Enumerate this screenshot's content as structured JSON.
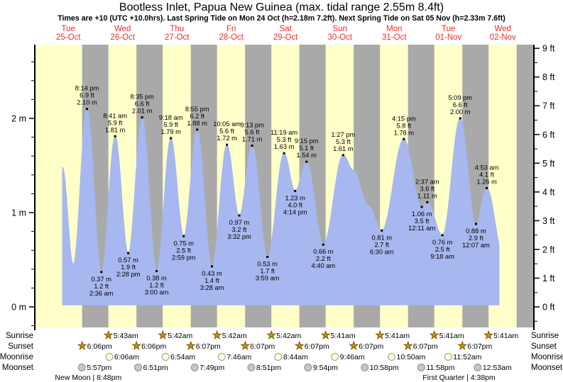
{
  "title": "Bootless Inlet, Papua New Guinea (max. tidal range 2.55m 8.4ft)",
  "subtitle": "Times are +10 (UTC +10.0hrs). Last Spring Tide on Mon 24 Oct (h=2.18m 7.2ft). Next Spring Tide on Sat 05 Nov (h=2.33m 7.6ft)",
  "days": [
    {
      "name": "Tue",
      "date": "25-Oct"
    },
    {
      "name": "Wed",
      "date": "26-Oct"
    },
    {
      "name": "Thu",
      "date": "27-Oct"
    },
    {
      "name": "Fri",
      "date": "28-Oct"
    },
    {
      "name": "Sat",
      "date": "29-Oct"
    },
    {
      "name": "Sun",
      "date": "30-Oct"
    },
    {
      "name": "Mon",
      "date": "31-Oct"
    },
    {
      "name": "Tue",
      "date": "01-Nov"
    },
    {
      "name": "Wed",
      "date": "02-Nov"
    }
  ],
  "chart_data": {
    "type": "area",
    "x_unit": "days since Tue 25-Oct 00:00 (local, UTC+10)",
    "y_left_label_unit": "m",
    "y_right_label_unit": "ft",
    "y_left_ticks": [
      "0 m",
      "1 m",
      "2 m"
    ],
    "y_right_ticks": [
      "0 ft",
      "1 ft",
      "2 ft",
      "3 ft",
      "4 ft",
      "5 ft",
      "6 ft",
      "7 ft",
      "8 ft",
      "9 ft"
    ],
    "ylim_m": [
      -0.22,
      2.78
    ],
    "grid": false,
    "start": {
      "t": 0.392,
      "h": 1.48
    },
    "end": {
      "t": 8.43,
      "h": 0.64
    },
    "events": [
      {
        "kind": "knot",
        "t": 0.59,
        "h": 0.45
      },
      {
        "kind": "high",
        "t": 0.843,
        "h": 2.1,
        "time": "8:14 pm",
        "ft": "6.9 ft",
        "m": "2.10 m"
      },
      {
        "kind": "low",
        "t": 1.108,
        "h": 0.37,
        "time": "2:36 am",
        "ft": "1.2 ft",
        "m": "0.37 m"
      },
      {
        "kind": "high",
        "t": 1.362,
        "h": 1.81,
        "time": "8:41 am",
        "ft": "5.9 ft",
        "m": "1.81 m"
      },
      {
        "kind": "low",
        "t": 1.603,
        "h": 0.57,
        "time": "2:28 pm",
        "ft": "1.9 ft",
        "m": "0.57 m"
      },
      {
        "kind": "high",
        "t": 1.858,
        "h": 2.01,
        "time": "8:35 pm",
        "ft": "6.6 ft",
        "m": "2.01 m"
      },
      {
        "kind": "low",
        "t": 2.125,
        "h": 0.38,
        "time": "3:00 am",
        "ft": "1.2 ft",
        "m": "0.38 m"
      },
      {
        "kind": "high",
        "t": 2.388,
        "h": 1.79,
        "time": "9:18 am",
        "ft": "5.9 ft",
        "m": "1.79 m"
      },
      {
        "kind": "low",
        "t": 2.624,
        "h": 0.75,
        "time": "2:59 pm",
        "ft": "2.5 ft",
        "m": "0.75 m"
      },
      {
        "kind": "high",
        "t": 2.872,
        "h": 1.88,
        "time": "8:55 pm",
        "ft": "6.2 ft",
        "m": "1.88 m"
      },
      {
        "kind": "low",
        "t": 3.144,
        "h": 0.43,
        "time": "3:28 am",
        "ft": "1.4 ft",
        "m": "0.43 m"
      },
      {
        "kind": "high",
        "t": 3.42,
        "h": 1.72,
        "time": "10:05 am",
        "ft": "5.6 ft",
        "m": "1.72 m"
      },
      {
        "kind": "low",
        "t": 3.647,
        "h": 0.97,
        "time": "3:32 pm",
        "ft": "3.2 ft",
        "m": "0.97 m"
      },
      {
        "kind": "high",
        "t": 3.884,
        "h": 1.71,
        "time": "9:13 pm",
        "ft": "5.6 ft",
        "m": "1.71 m"
      },
      {
        "kind": "low",
        "t": 4.166,
        "h": 0.53,
        "time": "3:59 am",
        "ft": "1.7 ft",
        "m": "0.53 m"
      },
      {
        "kind": "high",
        "t": 4.472,
        "h": 1.63,
        "time": "11:19 am",
        "ft": "5.3 ft",
        "m": "1.63 m"
      },
      {
        "kind": "low",
        "t": 4.676,
        "h": 1.23,
        "time": "4:14 pm",
        "ft": "4.0 ft",
        "m": "1.23 m"
      },
      {
        "kind": "high",
        "t": 4.885,
        "h": 1.54,
        "time": "9:15 pm",
        "ft": "5.1 ft",
        "m": "1.54 m"
      },
      {
        "kind": "low",
        "t": 5.194,
        "h": 0.66,
        "time": "4:40 am",
        "ft": "2.2 ft",
        "m": "0.66 m"
      },
      {
        "kind": "high",
        "t": 5.56,
        "h": 1.61,
        "time": "1:27 pm",
        "ft": "5.3 ft",
        "m": "1.61 m"
      },
      {
        "kind": "knot",
        "t": 5.75,
        "h": 1.45
      },
      {
        "kind": "knot",
        "t": 6.02,
        "h": 1.08
      },
      {
        "kind": "low",
        "t": 6.271,
        "h": 0.81,
        "time": "6:30 am",
        "ft": "2.7 ft",
        "m": "0.81 m"
      },
      {
        "kind": "high",
        "t": 6.677,
        "h": 1.78,
        "time": "4:15 pm",
        "ft": "5.8 ft",
        "m": "1.78 m"
      },
      {
        "kind": "low",
        "t": 7.008,
        "h": 1.06,
        "time": "12:11 am",
        "ft": "3.5 ft",
        "m": "1.06 m"
      },
      {
        "kind": "high",
        "t": 7.109,
        "h": 1.11,
        "time": "2:37 am",
        "ft": "3.6 ft",
        "m": "1.11 m"
      },
      {
        "kind": "low",
        "t": 7.388,
        "h": 0.76,
        "time": "9:18 am",
        "ft": "2.5 ft",
        "m": "0.76 m"
      },
      {
        "kind": "high",
        "t": 7.715,
        "h": 2.0,
        "time": "5:09 pm",
        "ft": "6.6 ft",
        "m": "2.00 m"
      },
      {
        "kind": "low",
        "t": 8.005,
        "h": 0.88,
        "time": "12:07 am",
        "ft": "2.9 ft",
        "m": "0.88 m"
      },
      {
        "kind": "high",
        "t": 8.203,
        "h": 1.26,
        "time": "4:53 am",
        "ft": "4.1 ft",
        "m": "1.26 m"
      },
      {
        "kind": "knot",
        "t": 8.52,
        "h": 0.52
      }
    ],
    "night": {
      "sunset_frac": 0.7542,
      "sunrise_frac": 0.2375
    }
  },
  "almanac": {
    "rows": [
      {
        "name": "Sunrise",
        "icon": "sunrise-star",
        "entries": [
          {
            "time": "5:43am",
            "t": 1.238
          },
          {
            "time": "5:42am",
            "t": 2.238
          },
          {
            "time": "5:42am",
            "t": 3.238
          },
          {
            "time": "5:42am",
            "t": 4.238
          },
          {
            "time": "5:41am",
            "t": 5.237
          },
          {
            "time": "5:41am",
            "t": 6.237
          },
          {
            "time": "5:41am",
            "t": 7.237
          },
          {
            "time": "5:41am",
            "t": 8.237
          }
        ]
      },
      {
        "name": "Sunset",
        "icon": "sunset-star",
        "entries": [
          {
            "time": "6:06pm",
            "t": 0.754
          },
          {
            "time": "6:06pm",
            "t": 1.754
          },
          {
            "time": "6:07pm",
            "t": 2.755
          },
          {
            "time": "6:07pm",
            "t": 3.755
          },
          {
            "time": "6:07pm",
            "t": 4.755
          },
          {
            "time": "6:07pm",
            "t": 5.755
          },
          {
            "time": "6:07pm",
            "t": 6.755
          },
          {
            "time": "6:07pm",
            "t": 7.755
          }
        ]
      },
      {
        "name": "Moonrise",
        "icon": "moonrise-circle",
        "entries": [
          {
            "time": "6:06am",
            "t": 1.254
          },
          {
            "time": "6:54am",
            "t": 2.288
          },
          {
            "time": "7:46am",
            "t": 3.324
          },
          {
            "time": "8:44am",
            "t": 4.364
          },
          {
            "time": "9:46am",
            "t": 5.407
          },
          {
            "time": "10:50am",
            "t": 6.451
          },
          {
            "time": "11:52am",
            "t": 7.494
          }
        ]
      },
      {
        "name": "Moonset",
        "icon": "moonset-circle",
        "entries": [
          {
            "time": "5:57pm",
            "t": 0.748
          },
          {
            "time": "6:51pm",
            "t": 1.785
          },
          {
            "time": "7:49pm",
            "t": 2.826
          },
          {
            "time": "8:51pm",
            "t": 3.869
          },
          {
            "time": "9:54pm",
            "t": 4.913
          },
          {
            "time": "10:58pm",
            "t": 5.957
          },
          {
            "time": "11:58pm",
            "t": 6.999
          },
          {
            "time": "12:53am",
            "t": 8.037
          }
        ]
      }
    ],
    "phases": [
      {
        "label": "New Moon | 8:48pm",
        "t": 0.867
      },
      {
        "label": "First Quarter | 4:38pm",
        "t": 7.693
      }
    ]
  },
  "colors": {
    "day_stripe": "#ffffc9",
    "night_stripe": "#a9a9a9",
    "tide_fill": "#a7b7ef",
    "day_label": "#e62e2e",
    "text": "#000000",
    "star_fill": "#c9920e",
    "star_stroke": "#7c5a00",
    "moonrise_fill": "#ffffd2",
    "moonrise_stroke": "#999999",
    "moonset_fill": "#c6c6c6",
    "moonset_stroke": "#8f8f8f"
  }
}
